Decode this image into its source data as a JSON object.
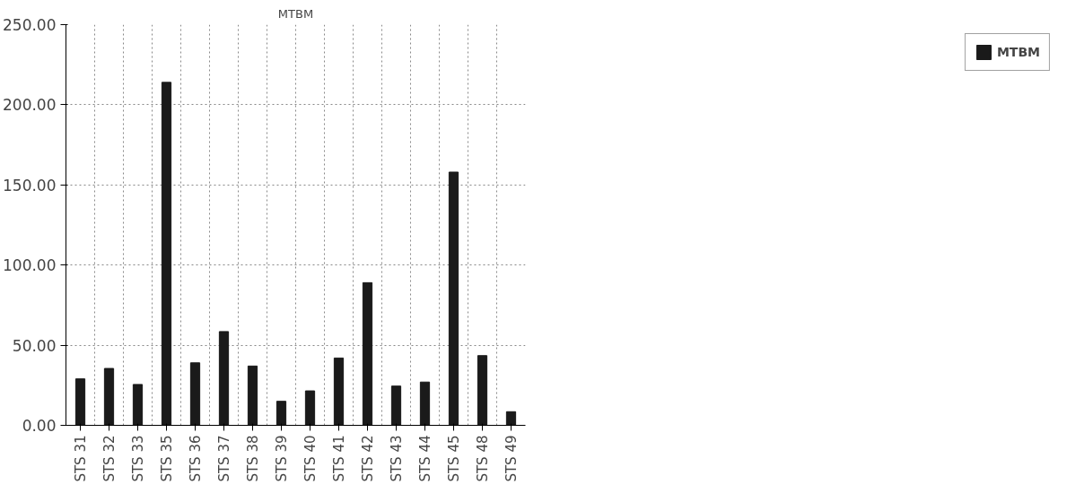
{
  "chart_data": {
    "type": "bar",
    "title": "MTBM",
    "categories": [
      "STS 31",
      "STS 32",
      "STS 33",
      "STS 35",
      "STS 36",
      "STS 37",
      "STS 38",
      "STS 39",
      "STS 40",
      "STS 41",
      "STS 42",
      "STS 43",
      "STS 44",
      "STS 45",
      "STS 48",
      "STS 49"
    ],
    "series": [
      {
        "name": "MTBM",
        "color": "#1a1a1a",
        "values": [
          29,
          35.5,
          25.5,
          214,
          39,
          58.5,
          37,
          15,
          21.5,
          42,
          89,
          24.5,
          27,
          158,
          43.5,
          8.5
        ]
      }
    ],
    "ylim": [
      0,
      250
    ],
    "yticks": [
      {
        "value": 0,
        "label": "0.00"
      },
      {
        "value": 50,
        "label": "50.00"
      },
      {
        "value": 100,
        "label": "100.00"
      },
      {
        "value": 150,
        "label": "150.00"
      },
      {
        "value": 200,
        "label": "200.00"
      },
      {
        "value": 250,
        "label": "250.00"
      }
    ],
    "grid": true,
    "legend": "right"
  }
}
